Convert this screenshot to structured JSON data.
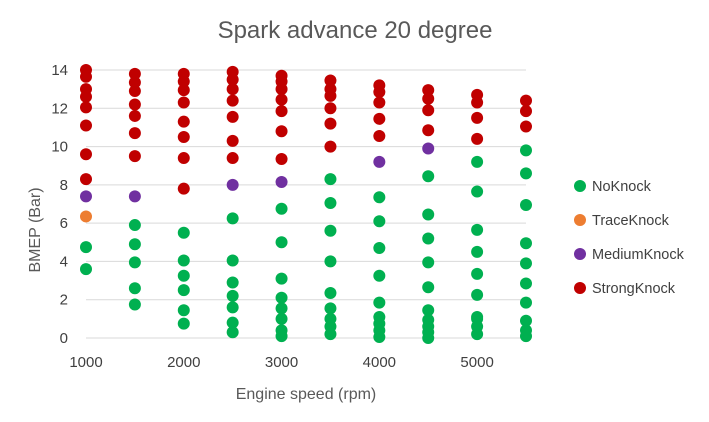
{
  "chart_data": {
    "type": "scatter",
    "title": "Spark advance 20 degree",
    "xlabel": "Engine speed (rpm)",
    "ylabel": "BMEP (Bar)",
    "xlim": [
      1000,
      5500
    ],
    "ylim": [
      0,
      14
    ],
    "xticks": [
      1000,
      2000,
      3000,
      4000,
      5000
    ],
    "yticks": [
      0,
      2,
      4,
      6,
      8,
      10,
      12,
      14
    ],
    "grid": "horizontal",
    "legend_position": "right",
    "series": [
      {
        "name": "NoKnock",
        "color": "#00b050",
        "points": [
          [
            1000,
            3.6
          ],
          [
            1000,
            4.75
          ],
          [
            1500,
            1.75
          ],
          [
            1500,
            2.6
          ],
          [
            1500,
            3.95
          ],
          [
            1500,
            4.9
          ],
          [
            1500,
            5.9
          ],
          [
            2000,
            0.75
          ],
          [
            2000,
            1.45
          ],
          [
            2000,
            2.5
          ],
          [
            2000,
            3.25
          ],
          [
            2000,
            4.05
          ],
          [
            2000,
            5.5
          ],
          [
            2500,
            0.3
          ],
          [
            2500,
            0.8
          ],
          [
            2500,
            1.6
          ],
          [
            2500,
            2.2
          ],
          [
            2500,
            2.9
          ],
          [
            2500,
            4.05
          ],
          [
            2500,
            6.25
          ],
          [
            3000,
            0.1
          ],
          [
            3000,
            0.4
          ],
          [
            3000,
            1.0
          ],
          [
            3000,
            1.55
          ],
          [
            3000,
            2.1
          ],
          [
            3000,
            3.1
          ],
          [
            3000,
            5.0
          ],
          [
            3000,
            6.75
          ],
          [
            3500,
            0.2
          ],
          [
            3500,
            0.6
          ],
          [
            3500,
            1.0
          ],
          [
            3500,
            1.55
          ],
          [
            3500,
            2.35
          ],
          [
            3500,
            4.0
          ],
          [
            3500,
            5.6
          ],
          [
            3500,
            7.05
          ],
          [
            3500,
            8.3
          ],
          [
            4000,
            0.05
          ],
          [
            4000,
            0.4
          ],
          [
            4000,
            0.75
          ],
          [
            4000,
            1.1
          ],
          [
            4000,
            1.85
          ],
          [
            4000,
            3.25
          ],
          [
            4000,
            4.7
          ],
          [
            4000,
            6.1
          ],
          [
            4000,
            7.35
          ],
          [
            4500,
            0.0
          ],
          [
            4500,
            0.3
          ],
          [
            4500,
            0.6
          ],
          [
            4500,
            0.95
          ],
          [
            4500,
            1.45
          ],
          [
            4500,
            2.65
          ],
          [
            4500,
            3.95
          ],
          [
            4500,
            5.2
          ],
          [
            4500,
            6.45
          ],
          [
            4500,
            8.45
          ],
          [
            5000,
            0.2
          ],
          [
            5000,
            0.6
          ],
          [
            5000,
            1.0
          ],
          [
            5000,
            1.1
          ],
          [
            5000,
            2.25
          ],
          [
            5000,
            3.35
          ],
          [
            5000,
            4.5
          ],
          [
            5000,
            5.65
          ],
          [
            5000,
            7.65
          ],
          [
            5000,
            9.2
          ],
          [
            5500,
            0.1
          ],
          [
            5500,
            0.4
          ],
          [
            5500,
            0.9
          ],
          [
            5500,
            1.85
          ],
          [
            5500,
            2.85
          ],
          [
            5500,
            3.9
          ],
          [
            5500,
            4.95
          ],
          [
            5500,
            6.95
          ],
          [
            5500,
            8.6
          ],
          [
            5500,
            9.8
          ]
        ]
      },
      {
        "name": "TraceKnock",
        "color": "#ed7d31",
        "points": [
          [
            1000,
            6.35
          ]
        ]
      },
      {
        "name": "MediumKnock",
        "color": "#7030a0",
        "points": [
          [
            1000,
            7.4
          ],
          [
            1500,
            7.4
          ],
          [
            2500,
            8.0
          ],
          [
            3000,
            8.15
          ],
          [
            4000,
            9.2
          ],
          [
            4500,
            9.9
          ]
        ]
      },
      {
        "name": "StrongKnock",
        "color": "#c00000",
        "points": [
          [
            1000,
            8.3
          ],
          [
            1000,
            9.6
          ],
          [
            1000,
            11.1
          ],
          [
            1000,
            12.05
          ],
          [
            1000,
            12.6
          ],
          [
            1000,
            13.0
          ],
          [
            1000,
            13.65
          ],
          [
            1000,
            14.0
          ],
          [
            1500,
            9.5
          ],
          [
            1500,
            10.7
          ],
          [
            1500,
            11.6
          ],
          [
            1500,
            12.2
          ],
          [
            1500,
            12.9
          ],
          [
            1500,
            13.35
          ],
          [
            1500,
            13.8
          ],
          [
            2000,
            7.8
          ],
          [
            2000,
            9.4
          ],
          [
            2000,
            10.5
          ],
          [
            2000,
            11.3
          ],
          [
            2000,
            12.3
          ],
          [
            2000,
            12.95
          ],
          [
            2000,
            13.4
          ],
          [
            2000,
            13.8
          ],
          [
            2500,
            9.4
          ],
          [
            2500,
            10.3
          ],
          [
            2500,
            11.55
          ],
          [
            2500,
            12.4
          ],
          [
            2500,
            13.0
          ],
          [
            2500,
            13.5
          ],
          [
            2500,
            13.9
          ],
          [
            3000,
            9.35
          ],
          [
            3000,
            10.8
          ],
          [
            3000,
            11.85
          ],
          [
            3000,
            12.45
          ],
          [
            3000,
            13.0
          ],
          [
            3000,
            13.4
          ],
          [
            3000,
            13.7
          ],
          [
            3500,
            10.0
          ],
          [
            3500,
            11.2
          ],
          [
            3500,
            12.0
          ],
          [
            3500,
            12.65
          ],
          [
            3500,
            13.0
          ],
          [
            3500,
            13.45
          ],
          [
            4000,
            10.55
          ],
          [
            4000,
            11.45
          ],
          [
            4000,
            12.3
          ],
          [
            4000,
            12.85
          ],
          [
            4000,
            13.2
          ],
          [
            4500,
            10.85
          ],
          [
            4500,
            11.9
          ],
          [
            4500,
            12.5
          ],
          [
            4500,
            12.95
          ],
          [
            5000,
            10.4
          ],
          [
            5000,
            11.5
          ],
          [
            5000,
            12.3
          ],
          [
            5000,
            12.7
          ],
          [
            5500,
            11.05
          ],
          [
            5500,
            11.85
          ],
          [
            5500,
            12.4
          ]
        ]
      }
    ]
  }
}
